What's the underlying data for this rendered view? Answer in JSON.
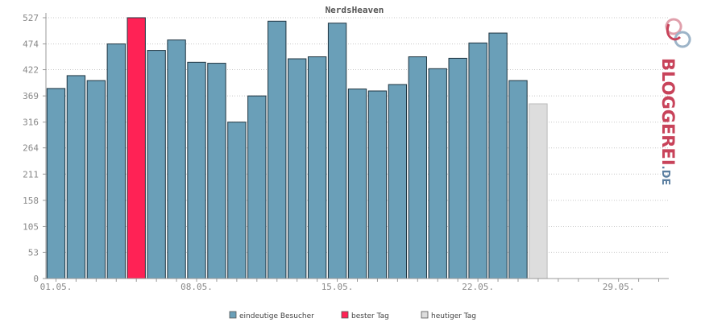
{
  "chart_data": {
    "type": "bar",
    "title": "NerdsHeaven",
    "xlabel": "",
    "ylabel": "",
    "ylim": [
      0,
      527
    ],
    "yticks": [
      0,
      53,
      105,
      158,
      211,
      264,
      316,
      369,
      422,
      474,
      527
    ],
    "x_tick_labels": [
      {
        "index": 0,
        "label": "01.05."
      },
      {
        "index": 7,
        "label": "08.05."
      },
      {
        "index": 14,
        "label": "15.05."
      },
      {
        "index": 21,
        "label": "22.05."
      },
      {
        "index": 28,
        "label": "29.05."
      }
    ],
    "days": 31,
    "grid": true,
    "legend_position": "bottom",
    "series": [
      {
        "name": "eindeutige Besucher",
        "color": "#6a9fb8",
        "values": [
          384,
          410,
          400,
          474,
          null,
          461,
          482,
          437,
          435,
          316,
          369,
          520,
          444,
          448,
          516,
          383,
          379,
          392,
          448,
          424,
          445,
          476,
          496,
          400,
          null,
          null,
          null,
          null,
          null,
          null,
          null
        ]
      },
      {
        "name": "bester Tag",
        "color": "#ff2255",
        "values": [
          null,
          null,
          null,
          null,
          527,
          null,
          null,
          null,
          null,
          null,
          null,
          null,
          null,
          null,
          null,
          null,
          null,
          null,
          null,
          null,
          null,
          null,
          null,
          null,
          null,
          null,
          null,
          null,
          null,
          null,
          null
        ]
      },
      {
        "name": "heutiger Tag",
        "color": "#dddddd",
        "values": [
          null,
          null,
          null,
          null,
          null,
          null,
          null,
          null,
          null,
          null,
          null,
          null,
          null,
          null,
          null,
          null,
          null,
          null,
          null,
          null,
          null,
          null,
          null,
          null,
          353,
          null,
          null,
          null,
          null,
          null,
          null
        ]
      }
    ]
  },
  "logo": {
    "text_main": "BLOGGEREI",
    "text_suffix": ".DE",
    "color_main": "#c8435a",
    "color_suffix": "#5a7ea0"
  }
}
